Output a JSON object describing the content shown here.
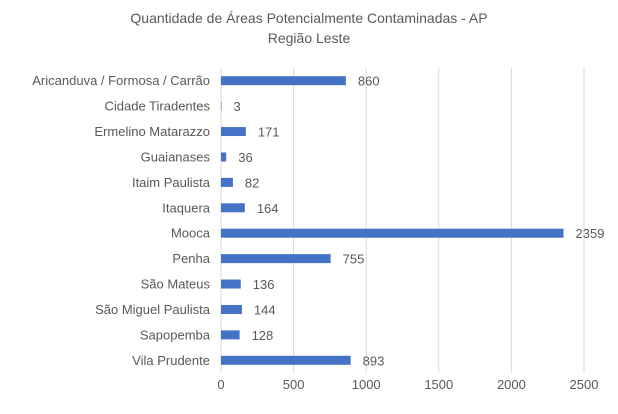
{
  "chart_data": {
    "type": "bar",
    "orientation": "horizontal",
    "title": "Quantidade de Áreas Potencialmente Contaminadas - AP",
    "subtitle": "Região Leste",
    "categories": [
      "Aricanduva / Formosa / Carrão",
      "Cidade Tiradentes",
      "Ermelino Matarazzo",
      "Guaianases",
      "Itaim Paulista",
      "Itaquera",
      "Mooca",
      "Penha",
      "São Mateus",
      "São Miguel Paulista",
      "Sapopemba",
      "Vila Prudente"
    ],
    "values": [
      860,
      3,
      171,
      36,
      82,
      164,
      2359,
      755,
      136,
      144,
      128,
      893
    ],
    "xlabel": "",
    "ylabel": "",
    "xlim": [
      0,
      2500
    ],
    "xticks": [
      0,
      500,
      1000,
      1500,
      2000,
      2500
    ],
    "grid": true,
    "legend": "none",
    "bar_color": "#4472C4",
    "grid_color": "#D9D9D9"
  }
}
